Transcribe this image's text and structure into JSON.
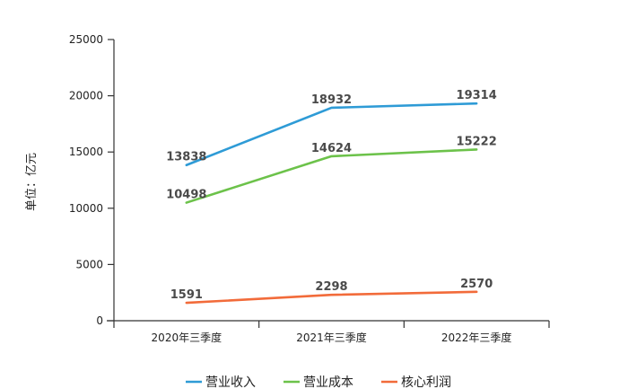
{
  "chart_data": {
    "type": "line",
    "title": "",
    "xlabel": "",
    "ylabel": "单位：亿元",
    "categories": [
      "2020年三季度",
      "2021年三季度",
      "2022年三季度"
    ],
    "ylim": [
      0,
      25000
    ],
    "yticks": [
      0,
      5000,
      10000,
      15000,
      20000,
      25000
    ],
    "grid": false,
    "legend_position": "bottom",
    "series": [
      {
        "name": "营业收入",
        "color": "#2e9bd6",
        "values": [
          13838,
          18932,
          19314
        ]
      },
      {
        "name": "营业成本",
        "color": "#6cc24a",
        "values": [
          10498,
          14624,
          15222
        ]
      },
      {
        "name": "核心利润",
        "color": "#f26b3a",
        "values": [
          1591,
          2298,
          2570
        ]
      }
    ]
  }
}
